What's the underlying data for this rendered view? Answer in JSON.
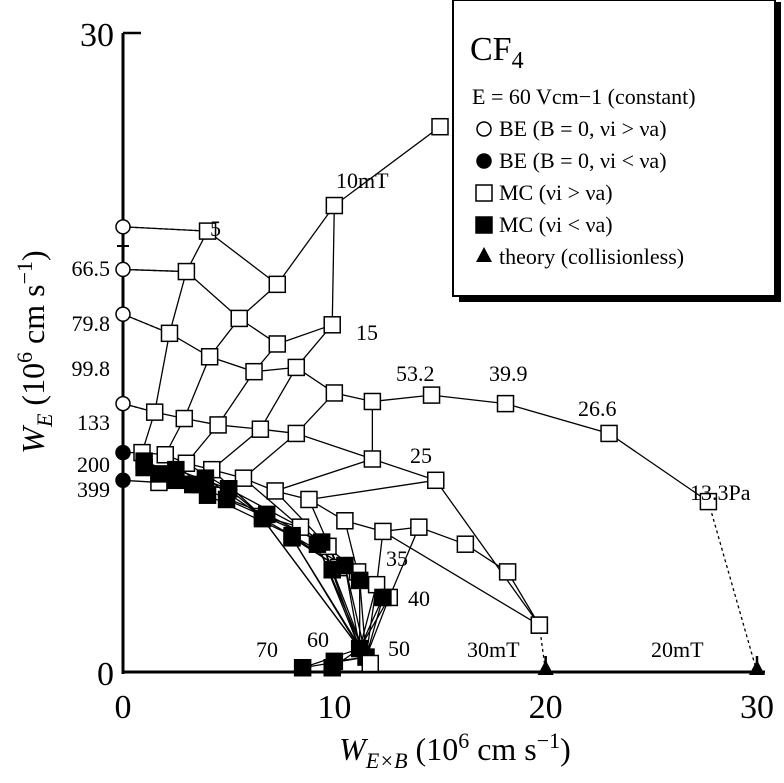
{
  "chart_data": {
    "type": "scatter",
    "title": "CF4",
    "title_main": "CF",
    "title_sub": "4",
    "condition": "E = 60 Vcm−1 (constant)",
    "xlim": [
      0,
      30
    ],
    "ylim": [
      0,
      30
    ],
    "x_ticks": [
      "0",
      "10",
      "20",
      "30"
    ],
    "y_ticks": [
      "0",
      "30"
    ],
    "x_label": {
      "base": "W",
      "sub": "E×B",
      "rest": " (10",
      "sup": "6",
      "end": " cm s",
      "sup2": "−1",
      "close": ")"
    },
    "y_label": {
      "base": "W",
      "sub": "E",
      "rest": " (10",
      "sup": "6",
      "end": " cm s",
      "sup2": "−1",
      "close": ")"
    },
    "grid": false,
    "legend_position": "top-right",
    "legend": [
      {
        "marker": "open-circle",
        "label": "BE (B = 0, νi > νa)"
      },
      {
        "marker": "filled-circle",
        "label": "BE (B = 0, νi < νa)"
      },
      {
        "marker": "open-square",
        "label": "MC (νi > νa)"
      },
      {
        "marker": "filled-square",
        "label": "MC (νi < νa)"
      },
      {
        "marker": "filled-triangle",
        "label": "theory (collisionless)"
      }
    ],
    "pressures": [
      "66.5",
      "79.8",
      "99.8",
      "133",
      "200",
      "399",
      "53.2",
      "39.9",
      "26.6",
      "13.3Pa"
    ],
    "fields": [
      "5",
      "10mT",
      "15",
      "25",
      "35",
      "40",
      "50",
      "60",
      "70",
      "30mT",
      "20mT"
    ],
    "series": [
      {
        "kind": "BE",
        "open": true,
        "x": [
          0,
          0,
          0,
          0
        ],
        "y": [
          20.9,
          18.9,
          16.8,
          12.6
        ]
      },
      {
        "kind": "BE",
        "open": false,
        "x": [
          0,
          0
        ],
        "y": [
          10.3,
          9.0
        ]
      },
      {
        "kind": "theory",
        "x": [
          20,
          30
        ],
        "y": [
          0,
          0
        ]
      },
      {
        "kind": "MC",
        "pressure": "66.5",
        "x": [
          0,
          4.0,
          7.3,
          10.0,
          15.0
        ],
        "y": [
          20.9,
          20.7,
          18.2,
          21.9,
          25.6
        ]
      },
      {
        "kind": "MC",
        "pressure": "79.8",
        "x": [
          0,
          3.0,
          5.5,
          7.3,
          9.9
        ],
        "y": [
          18.9,
          18.8,
          16.6,
          15.4,
          16.3
        ]
      },
      {
        "kind": "MC",
        "pressure": "99.8",
        "x": [
          0,
          2.2,
          4.1,
          6.2,
          8.2,
          10.0,
          11.8,
          14.6,
          18.1,
          23.0,
          27.7
        ],
        "y": [
          16.8,
          15.9,
          14.8,
          14.1,
          14.3,
          13.1,
          12.7,
          13.0,
          12.6,
          11.2,
          8.0
        ]
      },
      {
        "kind": "MC",
        "pressure": "133",
        "x": [
          0,
          1.5,
          2.9,
          4.5,
          6.5,
          8.2,
          11.8,
          14.8,
          19.7
        ],
        "y": [
          12.6,
          12.2,
          11.9,
          11.6,
          11.4,
          11.2,
          10.0,
          9.0,
          2.2
        ]
      },
      {
        "kind": "MC",
        "pressure": "200",
        "x": [
          0,
          0.9,
          2.0,
          3.0,
          4.2,
          5.7,
          7.2,
          8.8,
          10.5,
          12.3,
          14.0,
          16.2,
          18.2,
          19.7
        ],
        "y": [
          10.3,
          10.3,
          10.2,
          9.8,
          9.5,
          9.1,
          8.5,
          8.1,
          7.1,
          6.6,
          6.8,
          6.0,
          4.7,
          2.2
        ]
      },
      {
        "kind": "MC",
        "pressure": "399",
        "x": [
          0,
          1.7,
          3.6,
          5.0,
          6.6,
          8.4,
          9.7,
          10.2,
          11.1,
          12.0,
          12.6
        ],
        "y": [
          9.0,
          8.9,
          8.8,
          8.6,
          7.3,
          6.8,
          5.9,
          4.9,
          4.7,
          4.1,
          3.5
        ]
      },
      {
        "kind": "MC",
        "filled": true,
        "x": [
          1.0,
          2.5,
          3.9,
          5.0,
          6.8,
          8.0,
          9.4,
          10.5,
          11.2,
          12.3
        ],
        "y": [
          9.9,
          9.5,
          9.1,
          8.6,
          7.4,
          6.4,
          6.1,
          5.0,
          4.3,
          3.5
        ]
      },
      {
        "kind": "MC",
        "filled": true,
        "x": [
          1.0,
          1.7,
          2.5,
          3.3,
          4.0,
          4.9,
          6.6,
          8.0,
          9.2,
          9.9
        ],
        "y": [
          9.6,
          9.3,
          9.0,
          8.8,
          8.3,
          8.1,
          7.2,
          6.3,
          6.0,
          4.8
        ]
      },
      {
        "kind": "MC",
        "filled": true,
        "x": [
          8.5,
          9.9,
          10.0,
          11.2,
          11.5
        ],
        "y": [
          0.2,
          0.2,
          0.5,
          1.1,
          0.7
        ]
      }
    ]
  }
}
